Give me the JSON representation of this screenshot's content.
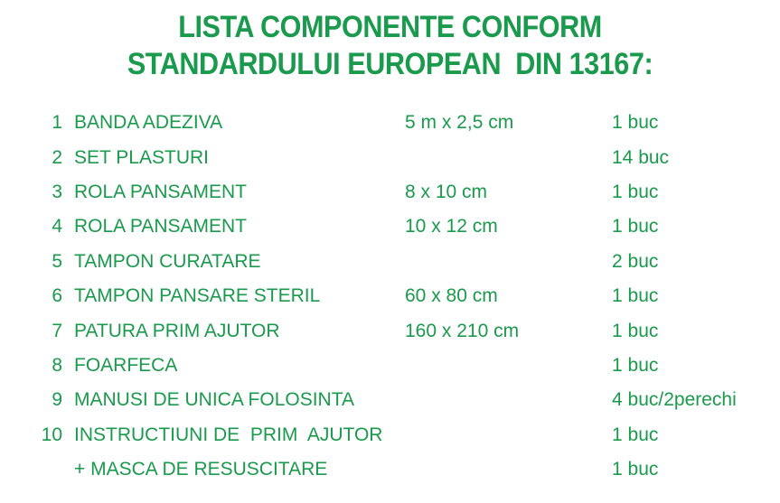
{
  "title": {
    "line1": "LISTA COMPONENTE CONFORM",
    "line2": "STANDARDULUI EUROPEAN  DIN 13167:"
  },
  "colors": {
    "text_green": "#1a9a4c",
    "background": "#ffffff"
  },
  "items": [
    {
      "num": "1",
      "name": "BANDA ADEZIVA",
      "size": "5 m x 2,5 cm",
      "qty": "1 buc"
    },
    {
      "num": "2",
      "name": "SET PLASTURI",
      "size": "",
      "qty": "14 buc"
    },
    {
      "num": "3",
      "name": "ROLA PANSAMENT",
      "size": "8 x 10 cm",
      "qty": "1 buc"
    },
    {
      "num": "4",
      "name": "ROLA PANSAMENT",
      "size": "10 x 12 cm",
      "qty": "1 buc"
    },
    {
      "num": "5",
      "name": "TAMPON CURATARE",
      "size": "",
      "qty": "2 buc"
    },
    {
      "num": "6",
      "name": "TAMPON PANSARE STERIL",
      "size": "60 x 80 cm",
      "qty": "1 buc"
    },
    {
      "num": "7",
      "name": "PATURA PRIM AJUTOR",
      "size": "160 x 210 cm",
      "qty": "1 buc"
    },
    {
      "num": "8",
      "name": "FOARFECA",
      "size": "",
      "qty": "1 buc"
    },
    {
      "num": "9",
      "name": "MANUSI DE UNICA FOLOSINTA",
      "size": "",
      "qty": "4 buc/2perechi"
    },
    {
      "num": "10",
      "name": "INSTRUCTIUNI DE  PRIM  AJUTOR",
      "size": "",
      "qty": "1 buc"
    },
    {
      "num": "",
      "name": "+ MASCA DE RESUSCITARE",
      "size": "",
      "qty": "1 buc"
    }
  ]
}
